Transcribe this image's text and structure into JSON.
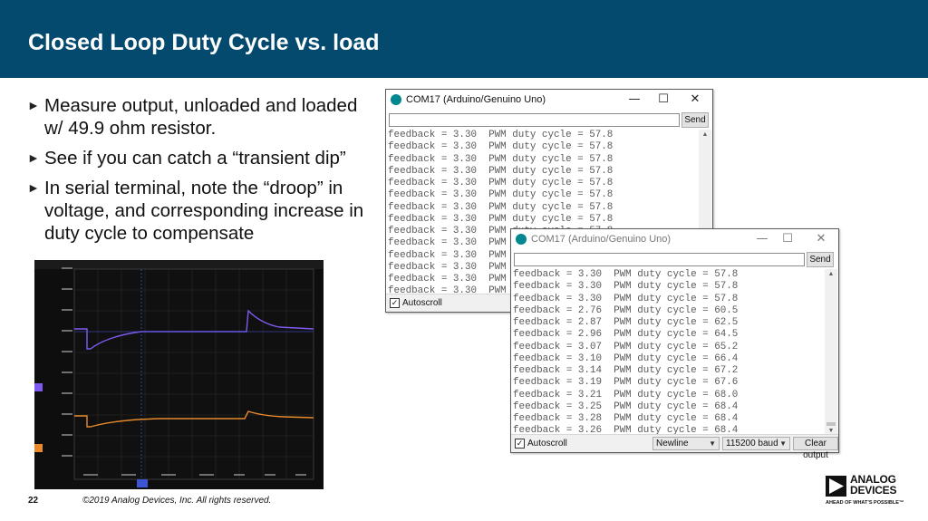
{
  "slide": {
    "title": "Closed Loop Duty Cycle vs. load",
    "bullets": [
      "Measure output, unloaded and loaded w/ 49.9 ohm resistor.",
      "See if you can catch a “transient dip”",
      "In serial terminal, note the “droop” in voltage, and corresponding increase in duty cycle to compensate"
    ],
    "bullet_icon": "right-triangle-icon",
    "page_number": "22",
    "copyright": "©2019 Analog Devices, Inc. All rights reserved.",
    "logo": {
      "name_line1": "ANALOG",
      "name_line2": "DEVICES",
      "tagline": "AHEAD OF WHAT’S POSSIBLE™"
    }
  },
  "colors": {
    "header": "#04496e",
    "scope_bg": "#0e0e0e",
    "channel_purple": "#7f5af0",
    "channel_orange": "#e8892a"
  },
  "terminal_back": {
    "title": "COM17 (Arduino/Genuino Uno)",
    "send_label": "Send",
    "autoscroll_label": "Autoscroll",
    "autoscroll_checked": true,
    "lines": [
      "feedback = 3.30  PWM duty cycle = 57.8",
      "feedback = 3.30  PWM duty cycle = 57.8",
      "feedback = 3.30  PWM duty cycle = 57.8",
      "feedback = 3.30  PWM duty cycle = 57.8",
      "feedback = 3.30  PWM duty cycle = 57.8",
      "feedback = 3.30  PWM duty cycle = 57.8",
      "feedback = 3.30  PWM duty cycle = 57.8",
      "feedback = 3.30  PWM duty cycle = 57.8",
      "feedback = 3.30  PWM duty cycle = 57.8",
      "feedback = 3.30  PWM duty cycle = 57.8",
      "feedback = 3.30  PWM duty cycle = 57.8",
      "feedback = 3.30  PWM duty cycle = 57.8",
      "feedback = 3.30  PWM duty cycle = 57.8",
      "feedback = 3.30  PWM duty cycle = 57.8"
    ]
  },
  "terminal_front": {
    "title": "COM17 (Arduino/Genuino Uno)",
    "send_label": "Send",
    "autoscroll_label": "Autoscroll",
    "autoscroll_checked": true,
    "line_ending": "Newline",
    "baud": "115200 baud",
    "clear_label": "Clear output",
    "lines": [
      "feedback = 3.30  PWM duty cycle = 57.8",
      "feedback = 3.30  PWM duty cycle = 57.8",
      "feedback = 3.30  PWM duty cycle = 57.8",
      "feedback = 2.76  PWM duty cycle = 60.5",
      "feedback = 2.87  PWM duty cycle = 62.5",
      "feedback = 2.96  PWM duty cycle = 64.5",
      "feedback = 3.07  PWM duty cycle = 65.2",
      "feedback = 3.10  PWM duty cycle = 66.4",
      "feedback = 3.14  PWM duty cycle = 67.2",
      "feedback = 3.19  PWM duty cycle = 67.6",
      "feedback = 3.21  PWM duty cycle = 68.0",
      "feedback = 3.25  PWM duty cycle = 68.4",
      "feedback = 3.28  PWM duty cycle = 68.4",
      "feedback = 3.26  PWM duty cycle = 68.4"
    ]
  },
  "window_controls": {
    "minimize": "—",
    "maximize": "☐",
    "close": "✕"
  }
}
